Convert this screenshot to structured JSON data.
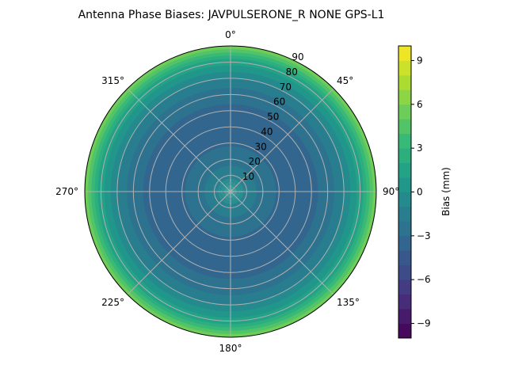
{
  "chart_data": {
    "type": "polar-contour",
    "title": "Antenna Phase Biases: JAVPULSERONE_R  NONE GPS-L1",
    "theta_direction": "clockwise",
    "theta_zero": "top",
    "theta_ticks": [
      "0°",
      "45°",
      "90°",
      "135°",
      "180°",
      "225°",
      "270°",
      "315°"
    ],
    "theta_tick_values": [
      0,
      45,
      90,
      135,
      180,
      225,
      270,
      315
    ],
    "r_ticks": [
      "10",
      "20",
      "30",
      "40",
      "50",
      "60",
      "70",
      "80",
      "90"
    ],
    "r_tick_values": [
      10,
      20,
      30,
      40,
      50,
      60,
      70,
      80,
      90
    ],
    "rlim": [
      0,
      90
    ],
    "grid": true,
    "colormap": "viridis",
    "colorbar": {
      "label": "Bias (mm)",
      "range": [
        -10,
        10
      ],
      "levels": 20,
      "ticks": [
        "−9",
        "−6",
        "−3",
        "0",
        "3",
        "6",
        "9"
      ],
      "tick_values": [
        -9,
        -6,
        -3,
        0,
        3,
        6,
        9
      ]
    },
    "bias_profile_by_zenith": {
      "zenith": [
        0,
        5,
        10,
        20,
        30,
        40,
        50,
        60,
        70,
        80,
        90
      ],
      "bias_mm": [
        0.5,
        -0.5,
        -1.5,
        -2.5,
        -3.2,
        -3.5,
        -3.3,
        -2.5,
        -1.0,
        1.5,
        6.0
      ]
    },
    "note_text": ""
  }
}
